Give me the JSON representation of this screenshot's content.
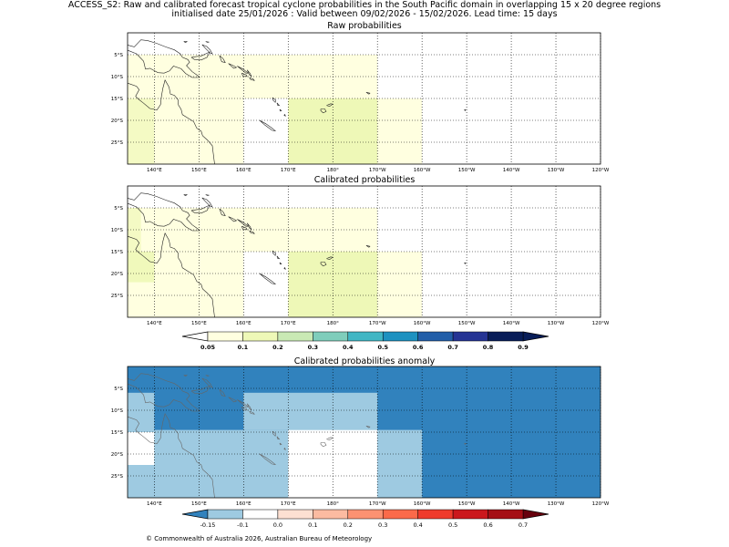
{
  "header": {
    "line1": "ACCESS_S2: Raw and calibrated forecast tropical cyclone probabilities in the South Pacific domain in overlapping 15 x 20 degree regions",
    "line2": "initialised date 25/01/2026 :  Valid between 09/02/2026 - 15/02/2026. Lead time: 15 days"
  },
  "map": {
    "lon_range": [
      134,
      240
    ],
    "lat_range": [
      -30,
      0
    ],
    "lon_ticks": [
      "140°E",
      "150°E",
      "160°E",
      "170°E",
      "180°",
      "170°W",
      "160°W",
      "150°W",
      "140°W",
      "130°W",
      "120°W"
    ],
    "lat_ticks": [
      "5°S",
      "10°S",
      "15°S",
      "20°S",
      "25°S"
    ]
  },
  "panels": [
    {
      "id": "raw",
      "subtitle": "Raw probabilities",
      "cells": [
        {
          "lon": [
            134,
            160
          ],
          "lat": [
            -5,
            -30
          ],
          "color": "#ffffe0"
        },
        {
          "lon": [
            160,
            190
          ],
          "lat": [
            -5,
            -15
          ],
          "color": "#ffffe0"
        },
        {
          "lon": [
            190,
            200
          ],
          "lat": [
            -15,
            -30
          ],
          "color": "#ffffe0"
        },
        {
          "lon": [
            134,
            140
          ],
          "lat": [
            -15,
            -30
          ],
          "color": "#f4fac4"
        },
        {
          "lon": [
            170,
            190
          ],
          "lat": [
            -15,
            -30
          ],
          "color": "#eef8b7"
        }
      ]
    },
    {
      "id": "calibrated",
      "subtitle": "Calibrated probabilities",
      "cells": [
        {
          "lon": [
            134,
            160
          ],
          "lat": [
            -5,
            -30
          ],
          "color": "#ffffe0"
        },
        {
          "lon": [
            160,
            190
          ],
          "lat": [
            -5,
            -15
          ],
          "color": "#ffffe0"
        },
        {
          "lon": [
            190,
            200
          ],
          "lat": [
            -15,
            -30
          ],
          "color": "#ffffe0"
        },
        {
          "lon": [
            134,
            137
          ],
          "lat": [
            -5,
            -15
          ],
          "color": "#f4fac4"
        },
        {
          "lon": [
            134,
            140
          ],
          "lat": [
            -15,
            -22
          ],
          "color": "#f0f9bb"
        },
        {
          "lon": [
            170,
            190
          ],
          "lat": [
            -15,
            -30
          ],
          "color": "#eef8b7"
        }
      ]
    },
    {
      "id": "anomaly",
      "subtitle": "Calibrated probabilities anomaly",
      "cells": [
        {
          "lon": [
            134,
            240
          ],
          "lat": [
            0,
            -30
          ],
          "color": "#3182bd"
        },
        {
          "lon": [
            134,
            140
          ],
          "lat": [
            -6,
            -15
          ],
          "color": "#9ecae1"
        },
        {
          "lon": [
            160,
            190
          ],
          "lat": [
            -6,
            -14.5
          ],
          "color": "#9ecae1"
        },
        {
          "lon": [
            140,
            170
          ],
          "lat": [
            -14.5,
            -30
          ],
          "color": "#9ecae1"
        },
        {
          "lon": [
            190,
            200
          ],
          "lat": [
            -14.5,
            -30
          ],
          "color": "#9ecae1"
        },
        {
          "lon": [
            134,
            140
          ],
          "lat": [
            -22.5,
            -30
          ],
          "color": "#9ecae1"
        },
        {
          "lon": [
            134,
            140
          ],
          "lat": [
            -15,
            -22.5
          ],
          "color": "#ffffff"
        },
        {
          "lon": [
            170,
            190
          ],
          "lat": [
            -14.5,
            -30
          ],
          "color": "#ffffff"
        }
      ]
    }
  ],
  "colorbars": [
    {
      "id": "probability-colorbar",
      "colors": [
        "#ffffe0",
        "#eef8b7",
        "#c9e9b4",
        "#7fcdbb",
        "#41b6c4",
        "#1d91c0",
        "#225ea8",
        "#253494",
        "#081d58"
      ],
      "extend_low": "#ffffff",
      "extend_high": "#081d58",
      "labels": [
        "0.05",
        "0.1",
        "0.2",
        "0.3",
        "0.4",
        "0.5",
        "0.6",
        "0.7",
        "0.8",
        "0.9"
      ],
      "bold": true
    },
    {
      "id": "anomaly-colorbar",
      "colors": [
        "#9ecae1",
        "#ffffff",
        "#fde0d2",
        "#fcbba1",
        "#fc9272",
        "#fb6a4a",
        "#ef3b2c",
        "#cb181d",
        "#a50f15"
      ],
      "extend_low": "#3182bd",
      "extend_high": "#67000d",
      "labels": [
        "-0.15",
        "-0.1",
        "0.0",
        "0.1",
        "0.2",
        "0.3",
        "0.4",
        "0.5",
        "0.6",
        "0.7"
      ],
      "bold": false
    }
  ],
  "footer": {
    "copyright": "© Commonwealth of Australia 2026, Australian Bureau of Meteorology"
  }
}
